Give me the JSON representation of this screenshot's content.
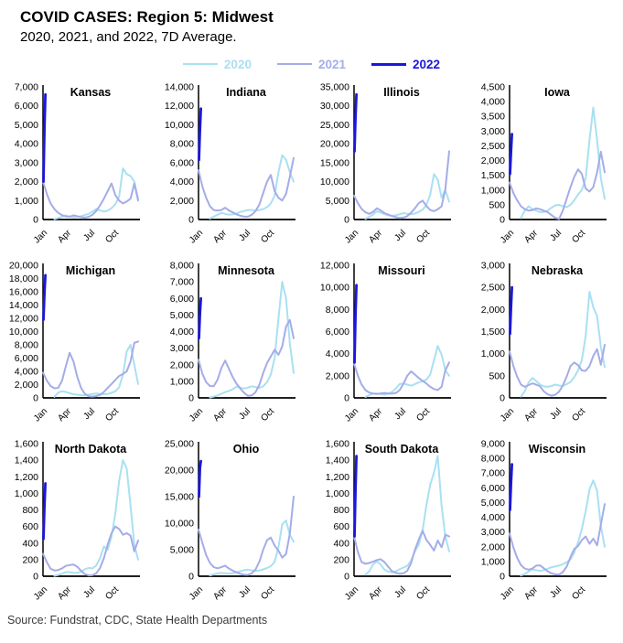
{
  "header": {
    "title": "COVID CASES: Region 5: Midwest",
    "subtitle": "2020, 2021, and 2022, 7D Average."
  },
  "legend": {
    "items": [
      {
        "label": "2020",
        "color": "#a9e0f2",
        "thickness": 2
      },
      {
        "label": "2021",
        "color": "#a5ace8",
        "thickness": 2
      },
      {
        "label": "2022",
        "color": "#1a17dd",
        "thickness": 3
      }
    ]
  },
  "source": "Source: Fundstrat, CDC, State Health Departments",
  "chart_data": {
    "type": "line",
    "layout": "4x3 small multiples, y-axis gridlines off, legend top center",
    "x_tick_labels": [
      "Jan",
      "Apr",
      "Jul",
      "Oct"
    ],
    "x_range": "Jan-Dec, 26 evenly spaced samples per year series",
    "series_names": [
      "2020",
      "2021",
      "2022"
    ],
    "colors": {
      "s2020": "#a9e0f2",
      "s2021": "#a5ace8",
      "s2022": "#1a17dd",
      "axis": "#000000"
    },
    "charts": [
      {
        "title": "Kansas",
        "ymax": 7000,
        "ystep": 1000,
        "s2020": [
          null,
          null,
          null,
          20,
          80,
          150,
          220,
          160,
          110,
          130,
          180,
          240,
          300,
          420,
          560,
          480,
          420,
          470,
          600,
          800,
          1200,
          2700,
          2400,
          2300,
          2000,
          1100
        ],
        "s2021": [
          2000,
          1350,
          850,
          550,
          350,
          230,
          160,
          150,
          220,
          180,
          120,
          100,
          140,
          250,
          450,
          750,
          1100,
          1500,
          1900,
          1300,
          1000,
          850,
          950,
          1100,
          1900,
          1000
        ],
        "s2022": [
          2000,
          4800,
          6600
        ]
      },
      {
        "title": "Indiana",
        "ymax": 14000,
        "ystep": 2000,
        "s2020": [
          null,
          null,
          null,
          100,
          300,
          500,
          700,
          600,
          500,
          550,
          650,
          800,
          900,
          1000,
          1000,
          950,
          1000,
          1100,
          1300,
          1700,
          2500,
          5000,
          6800,
          6300,
          5000,
          4000
        ],
        "s2021": [
          5200,
          3500,
          2300,
          1400,
          1000,
          950,
          1000,
          1250,
          950,
          750,
          550,
          400,
          300,
          300,
          500,
          900,
          1600,
          2800,
          4000,
          4700,
          3000,
          2300,
          2000,
          2700,
          4500,
          6500
        ],
        "s2022": [
          6300,
          9500,
          11700
        ]
      },
      {
        "title": "Illinois",
        "ymax": 35000,
        "ystep": 5000,
        "s2020": [
          null,
          null,
          null,
          200,
          700,
          1300,
          2200,
          1800,
          1400,
          1100,
          1000,
          1100,
          1400,
          1700,
          1500,
          1400,
          1600,
          2000,
          2600,
          3800,
          6500,
          12000,
          10500,
          5800,
          7800,
          4700
        ],
        "s2021": [
          6300,
          4300,
          2800,
          1900,
          1500,
          2000,
          3000,
          2400,
          1700,
          1300,
          900,
          600,
          400,
          500,
          900,
          1800,
          3000,
          4300,
          5000,
          3600,
          2500,
          2200,
          2700,
          3500,
          8000,
          18000
        ],
        "s2022": [
          18000,
          27000,
          33000
        ]
      },
      {
        "title": "Iowa",
        "ymax": 4500,
        "ystep": 500,
        "s2020": [
          null,
          null,
          null,
          50,
          300,
          450,
          350,
          300,
          250,
          250,
          300,
          400,
          480,
          500,
          450,
          420,
          500,
          650,
          850,
          1000,
          1400,
          2700,
          3800,
          2700,
          1400,
          700
        ],
        "s2021": [
          1250,
          900,
          650,
          450,
          350,
          300,
          320,
          380,
          350,
          300,
          250,
          150,
          60,
          20,
          300,
          700,
          1100,
          1450,
          1700,
          1550,
          1050,
          950,
          1100,
          1600,
          2300,
          1600
        ],
        "s2022": [
          1550,
          2300,
          2900
        ]
      },
      {
        "title": "Michigan",
        "ymax": 20000,
        "ystep": 2000,
        "s2020": [
          null,
          null,
          null,
          150,
          800,
          1000,
          900,
          700,
          550,
          480,
          420,
          400,
          500,
          600,
          650,
          600,
          550,
          600,
          750,
          1000,
          1600,
          3500,
          7000,
          8000,
          5000,
          2100
        ],
        "s2021": [
          3800,
          2600,
          1800,
          1450,
          1500,
          2600,
          4800,
          6800,
          5500,
          3200,
          1500,
          600,
          250,
          200,
          280,
          450,
          900,
          1500,
          2100,
          2700,
          3300,
          3600,
          4000,
          5500,
          8300,
          8500
        ],
        "s2022": [
          11800,
          15800,
          18500
        ]
      },
      {
        "title": "Minnesota",
        "ymax": 8000,
        "ystep": 1000,
        "s2020": [
          null,
          null,
          null,
          30,
          80,
          150,
          250,
          350,
          420,
          520,
          680,
          620,
          560,
          620,
          700,
          650,
          600,
          700,
          950,
          1400,
          2400,
          4800,
          7000,
          6000,
          3300,
          1500
        ],
        "s2021": [
          2300,
          1450,
          950,
          720,
          700,
          1100,
          1800,
          2250,
          1750,
          1250,
          850,
          550,
          300,
          120,
          150,
          350,
          800,
          1500,
          2100,
          2500,
          2900,
          2600,
          3100,
          4300,
          4700,
          3600
        ],
        "s2022": [
          3600,
          5100,
          6000
        ]
      },
      {
        "title": "Missouri",
        "ymax": 12000,
        "ystep": 2000,
        "s2020": [
          null,
          null,
          null,
          80,
          250,
          380,
          400,
          350,
          300,
          380,
          550,
          850,
          1250,
          1300,
          1200,
          1100,
          1250,
          1400,
          1500,
          1650,
          2100,
          3400,
          4700,
          3900,
          2500,
          2000
        ],
        "s2021": [
          3100,
          2000,
          1200,
          700,
          480,
          400,
          350,
          400,
          450,
          400,
          380,
          450,
          700,
          1300,
          2000,
          2400,
          2100,
          1800,
          1550,
          1300,
          1000,
          800,
          700,
          1000,
          2500,
          3200
        ],
        "s2022": [
          3200,
          7500,
          10200
        ]
      },
      {
        "title": "Nebraska",
        "ymax": 3000,
        "ystep": 500,
        "s2020": [
          null,
          null,
          null,
          30,
          150,
          350,
          450,
          380,
          300,
          260,
          250,
          270,
          300,
          280,
          270,
          310,
          360,
          470,
          620,
          850,
          1400,
          2400,
          2050,
          1850,
          1150,
          700
        ],
        "s2021": [
          1050,
          720,
          480,
          300,
          250,
          290,
          330,
          300,
          260,
          150,
          80,
          50,
          70,
          140,
          280,
          480,
          720,
          800,
          740,
          620,
          610,
          720,
          950,
          1100,
          750,
          1200
        ],
        "s2022": [
          1450,
          2050,
          2500
        ]
      },
      {
        "title": "North Dakota",
        "ymax": 1600,
        "ystep": 200,
        "s2020": [
          null,
          null,
          null,
          5,
          15,
          30,
          50,
          50,
          40,
          40,
          55,
          85,
          100,
          95,
          130,
          220,
          360,
          320,
          480,
          750,
          1150,
          1400,
          1300,
          850,
          380,
          200
        ],
        "s2021": [
          270,
          170,
          90,
          70,
          75,
          95,
          125,
          135,
          140,
          115,
          65,
          25,
          10,
          12,
          35,
          100,
          220,
          380,
          520,
          600,
          570,
          500,
          520,
          490,
          300,
          430
        ],
        "s2022": [
          450,
          850,
          1120
        ]
      },
      {
        "title": "Ohio",
        "ymax": 25000,
        "ystep": 5000,
        "s2020": [
          null,
          null,
          null,
          150,
          350,
          550,
          620,
          560,
          500,
          560,
          720,
          950,
          1150,
          1250,
          1100,
          1000,
          1100,
          1300,
          1550,
          1900,
          2700,
          5500,
          9800,
          10500,
          7800,
          6500
        ],
        "s2021": [
          8800,
          6300,
          4000,
          2500,
          1700,
          1500,
          1700,
          2000,
          1450,
          1050,
          750,
          450,
          280,
          260,
          550,
          1300,
          2800,
          5000,
          6800,
          7300,
          5800,
          4800,
          3500,
          4200,
          8000,
          15000
        ],
        "s2022": [
          15000,
          20500,
          21700
        ]
      },
      {
        "title": "South Dakota",
        "ymax": 1600,
        "ystep": 200,
        "s2020": [
          null,
          null,
          null,
          20,
          60,
          140,
          180,
          140,
          80,
          55,
          50,
          60,
          85,
          105,
          125,
          190,
          300,
          380,
          550,
          850,
          1100,
          1250,
          1450,
          850,
          480,
          300
        ],
        "s2021": [
          480,
          290,
          170,
          150,
          160,
          175,
          195,
          205,
          170,
          115,
          60,
          40,
          30,
          35,
          65,
          160,
          320,
          440,
          550,
          440,
          380,
          310,
          430,
          350,
          500,
          480
        ],
        "s2022": [
          480,
          1050,
          1450
        ]
      },
      {
        "title": "Wisconsin",
        "ymax": 9000,
        "ystep": 1000,
        "s2020": [
          null,
          null,
          null,
          50,
          150,
          320,
          460,
          410,
          360,
          410,
          510,
          610,
          660,
          720,
          820,
          950,
          1150,
          1600,
          2300,
          3200,
          4400,
          5900,
          6500,
          5800,
          3400,
          2000
        ],
        "s2021": [
          2900,
          1950,
          1250,
          750,
          520,
          450,
          520,
          720,
          740,
          540,
          340,
          190,
          130,
          110,
          280,
          650,
          1300,
          1850,
          2050,
          2450,
          2700,
          2200,
          2550,
          2100,
          3500,
          4900
        ],
        "s2022": [
          4500,
          6300,
          7600
        ]
      }
    ]
  }
}
